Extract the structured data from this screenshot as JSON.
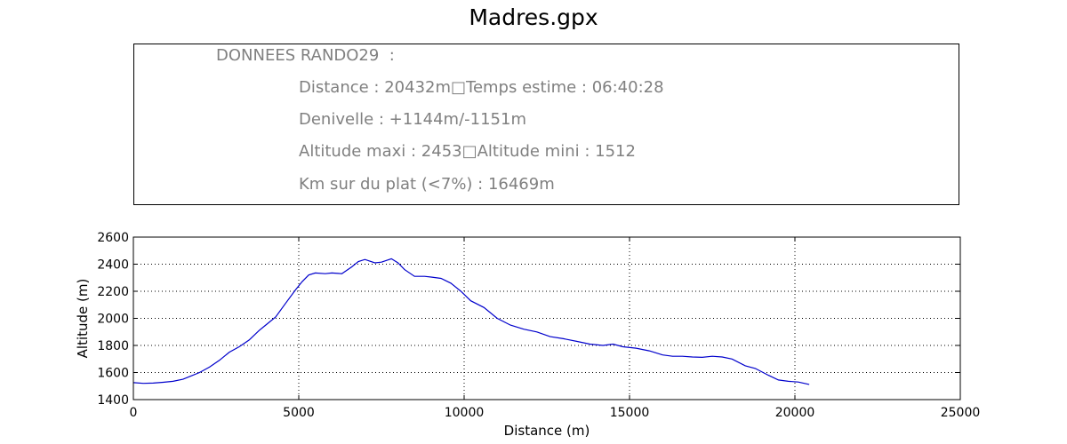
{
  "title": "Madres.gpx",
  "info": {
    "heading": "DONNEES RANDO29  :",
    "lines": [
      "Distance : 20432m□Temps estime : 06:40:28",
      "Denivelle : +1144m/-1151m",
      "Altitude maxi : 2453□Altitude mini : 1512",
      "Km sur du plat (<7%) : 16469m"
    ]
  },
  "chart_data": {
    "type": "line",
    "xlabel": "Distance (m)",
    "ylabel": "Altitude (m)",
    "xlim": [
      0,
      25000
    ],
    "ylim": [
      1400,
      2600
    ],
    "xticks": [
      0,
      5000,
      10000,
      15000,
      20000,
      25000
    ],
    "yticks": [
      1400,
      1600,
      1800,
      2000,
      2200,
      2400,
      2600
    ],
    "grid": true,
    "line_color": "#0000cc",
    "series": [
      {
        "x": [
          0,
          300,
          600,
          900,
          1200,
          1500,
          1700,
          2000,
          2300,
          2600,
          2900,
          3200,
          3500,
          3800,
          4000,
          4300,
          4600,
          4900,
          5100,
          5300,
          5500,
          5800,
          6000,
          6300,
          6600,
          6800,
          7000,
          7300,
          7500,
          7800,
          8000,
          8200,
          8500,
          8800,
          9000,
          9300,
          9600,
          9900,
          10200,
          10600,
          11000,
          11400,
          11800,
          12200,
          12600,
          13000,
          13400,
          13800,
          14200,
          14500,
          14800,
          15200,
          15600,
          16000,
          16300,
          16600,
          16900,
          17200,
          17500,
          17800,
          18100,
          18500,
          18800,
          19200,
          19500,
          19800,
          20100,
          20432
        ],
        "y": [
          1525,
          1520,
          1522,
          1528,
          1535,
          1550,
          1570,
          1600,
          1640,
          1690,
          1750,
          1790,
          1840,
          1910,
          1950,
          2010,
          2110,
          2210,
          2270,
          2320,
          2335,
          2330,
          2335,
          2330,
          2380,
          2420,
          2435,
          2410,
          2415,
          2440,
          2410,
          2360,
          2310,
          2310,
          2305,
          2295,
          2260,
          2200,
          2130,
          2080,
          2000,
          1950,
          1920,
          1900,
          1865,
          1850,
          1830,
          1810,
          1800,
          1810,
          1790,
          1780,
          1760,
          1730,
          1720,
          1720,
          1715,
          1712,
          1720,
          1715,
          1700,
          1650,
          1630,
          1580,
          1545,
          1535,
          1530,
          1512
        ]
      }
    ]
  }
}
